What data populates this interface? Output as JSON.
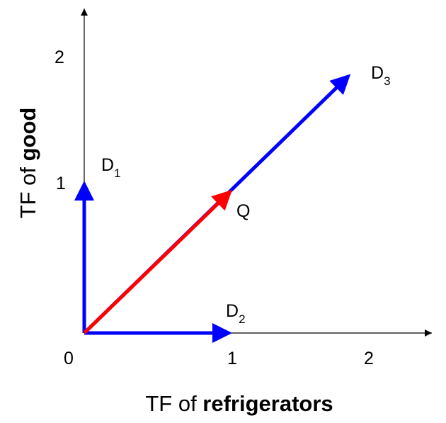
{
  "axes": {
    "x_title_prefix": "TF of ",
    "x_title_bold": "refrigerators",
    "y_title_prefix": "TF of ",
    "y_title_bold": "good",
    "x_ticks": [
      "0",
      "1",
      "2"
    ],
    "y_ticks": [
      "1",
      "2"
    ],
    "axis_color": "#000000"
  },
  "vectors": [
    {
      "id": "D1",
      "letter": "D",
      "sub": "1",
      "from": [
        0,
        0
      ],
      "to": [
        0,
        1
      ],
      "color": "#0000ff"
    },
    {
      "id": "D2",
      "letter": "D",
      "sub": "2",
      "from": [
        0,
        0
      ],
      "to": [
        1,
        0
      ],
      "color": "#0000ff"
    },
    {
      "id": "D3",
      "letter": "D",
      "sub": "3",
      "from": [
        0,
        0
      ],
      "to": [
        1.8,
        1.7
      ],
      "color": "#0000ff"
    },
    {
      "id": "Q",
      "letter": "Q",
      "sub": "",
      "from": [
        0,
        0
      ],
      "to": [
        1,
        0.94
      ],
      "color": "#ff0000"
    }
  ]
}
